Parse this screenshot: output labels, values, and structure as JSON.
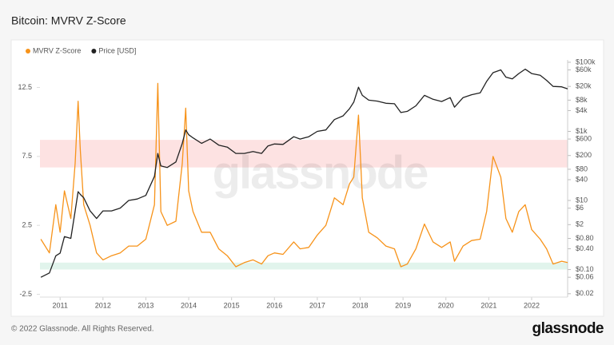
{
  "chart_data": {
    "type": "line",
    "title": "Bitcoin: MVRV Z-Score",
    "watermark": "glassnode",
    "footer": "© 2022 Glassnode. All Rights Reserved.",
    "logo": "glassnode",
    "x": [
      2010.55,
      2010.75,
      2010.9,
      2011.0,
      2011.1,
      2011.25,
      2011.35,
      2011.42,
      2011.47,
      2011.55,
      2011.7,
      2011.85,
      2012.0,
      2012.2,
      2012.4,
      2012.6,
      2012.8,
      2013.0,
      2013.2,
      2013.28,
      2013.35,
      2013.5,
      2013.7,
      2013.85,
      2013.93,
      2014.0,
      2014.1,
      2014.3,
      2014.5,
      2014.7,
      2014.9,
      2015.1,
      2015.3,
      2015.5,
      2015.7,
      2015.85,
      2016.0,
      2016.2,
      2016.45,
      2016.6,
      2016.8,
      2017.0,
      2017.2,
      2017.4,
      2017.6,
      2017.75,
      2017.85,
      2017.96,
      2018.05,
      2018.2,
      2018.4,
      2018.6,
      2018.8,
      2018.95,
      2019.1,
      2019.3,
      2019.5,
      2019.7,
      2019.9,
      2020.1,
      2020.2,
      2020.4,
      2020.6,
      2020.8,
      2020.95,
      2021.1,
      2021.28,
      2021.4,
      2021.55,
      2021.7,
      2021.85,
      2022.0,
      2022.2,
      2022.35,
      2022.5,
      2022.7,
      2022.84
    ],
    "series": [
      {
        "name": "MVRV Z-Score",
        "color": "#f7931a",
        "axis": "y",
        "values": [
          1.5,
          0.5,
          4,
          2.0,
          5,
          3,
          7,
          11.5,
          8,
          4,
          2.5,
          0.5,
          0,
          0.3,
          0.5,
          1.0,
          1.0,
          1.5,
          4,
          12.8,
          3.5,
          2.5,
          2.8,
          7,
          11,
          5,
          3.5,
          2,
          2.0,
          0.8,
          0.3,
          -0.5,
          -0.2,
          0,
          -0.3,
          0.3,
          0.5,
          0.4,
          1.3,
          0.8,
          0.9,
          1.8,
          2.5,
          4.5,
          4,
          5.5,
          6,
          10.5,
          4.5,
          2,
          1.6,
          1.0,
          0.8,
          -0.5,
          -0.3,
          0.8,
          2.6,
          1.3,
          0.9,
          1.3,
          -0.1,
          1,
          1.4,
          1.5,
          3.5,
          7.5,
          6,
          3,
          2,
          3.5,
          4,
          2.2,
          1.5,
          0.8,
          -0.3,
          -0.1,
          -0.2
        ]
      },
      {
        "name": "Price [USD]",
        "color": "#222222",
        "axis": "y2",
        "values": [
          0.06,
          0.08,
          0.25,
          0.3,
          0.9,
          0.8,
          5,
          18,
          15,
          12,
          5,
          3,
          5,
          5,
          6,
          10,
          11,
          14,
          50,
          230,
          100,
          90,
          130,
          450,
          1100,
          800,
          650,
          450,
          600,
          400,
          350,
          230,
          230,
          260,
          230,
          380,
          430,
          420,
          700,
          600,
          700,
          1000,
          1100,
          2200,
          2800,
          4500,
          7000,
          19000,
          11000,
          8000,
          7500,
          6500,
          6300,
          3500,
          3800,
          5500,
          11000,
          8500,
          7300,
          9500,
          5000,
          9500,
          11500,
          13000,
          28000,
          50000,
          60000,
          37000,
          33000,
          47000,
          63000,
          47000,
          42000,
          30000,
          20000,
          19500,
          17000
        ]
      }
    ],
    "zones": [
      {
        "from": 6.7,
        "to": 8.7,
        "color": "#fde2e2"
      },
      {
        "from": -0.7,
        "to": -0.2,
        "color": "#e1f4ec"
      }
    ],
    "xlim": [
      2010.53,
      2022.84
    ],
    "xticks": [
      2011,
      2012,
      2013,
      2014,
      2015,
      2016,
      2017,
      2018,
      2019,
      2020,
      2021,
      2022
    ],
    "ylim": [
      -2.7,
      14.5
    ],
    "yticks": [
      -2.5,
      2.5,
      7.5,
      12.5
    ],
    "y2lim": [
      0.016,
      117000
    ],
    "y2log": true,
    "y2ticks": [
      {
        "value": 100000,
        "label": "$100k"
      },
      {
        "value": 60000,
        "label": "$60k"
      },
      {
        "value": 20000,
        "label": "$20k"
      },
      {
        "value": 8000,
        "label": "$8k"
      },
      {
        "value": 4000,
        "label": "$4k"
      },
      {
        "value": 1000,
        "label": "$1k"
      },
      {
        "value": 600,
        "label": "$600"
      },
      {
        "value": 200,
        "label": "$200"
      },
      {
        "value": 80,
        "label": "$80"
      },
      {
        "value": 40,
        "label": "$40"
      },
      {
        "value": 10,
        "label": "$10"
      },
      {
        "value": 6,
        "label": "$6"
      },
      {
        "value": 2,
        "label": "$2"
      },
      {
        "value": 0.8,
        "label": "$0.80"
      },
      {
        "value": 0.4,
        "label": "$0.40"
      },
      {
        "value": 0.1,
        "label": "$0.10"
      },
      {
        "value": 0.06,
        "label": "$0.06"
      },
      {
        "value": 0.02,
        "label": "$0.02"
      }
    ],
    "grid": false,
    "legend": "top-left"
  }
}
